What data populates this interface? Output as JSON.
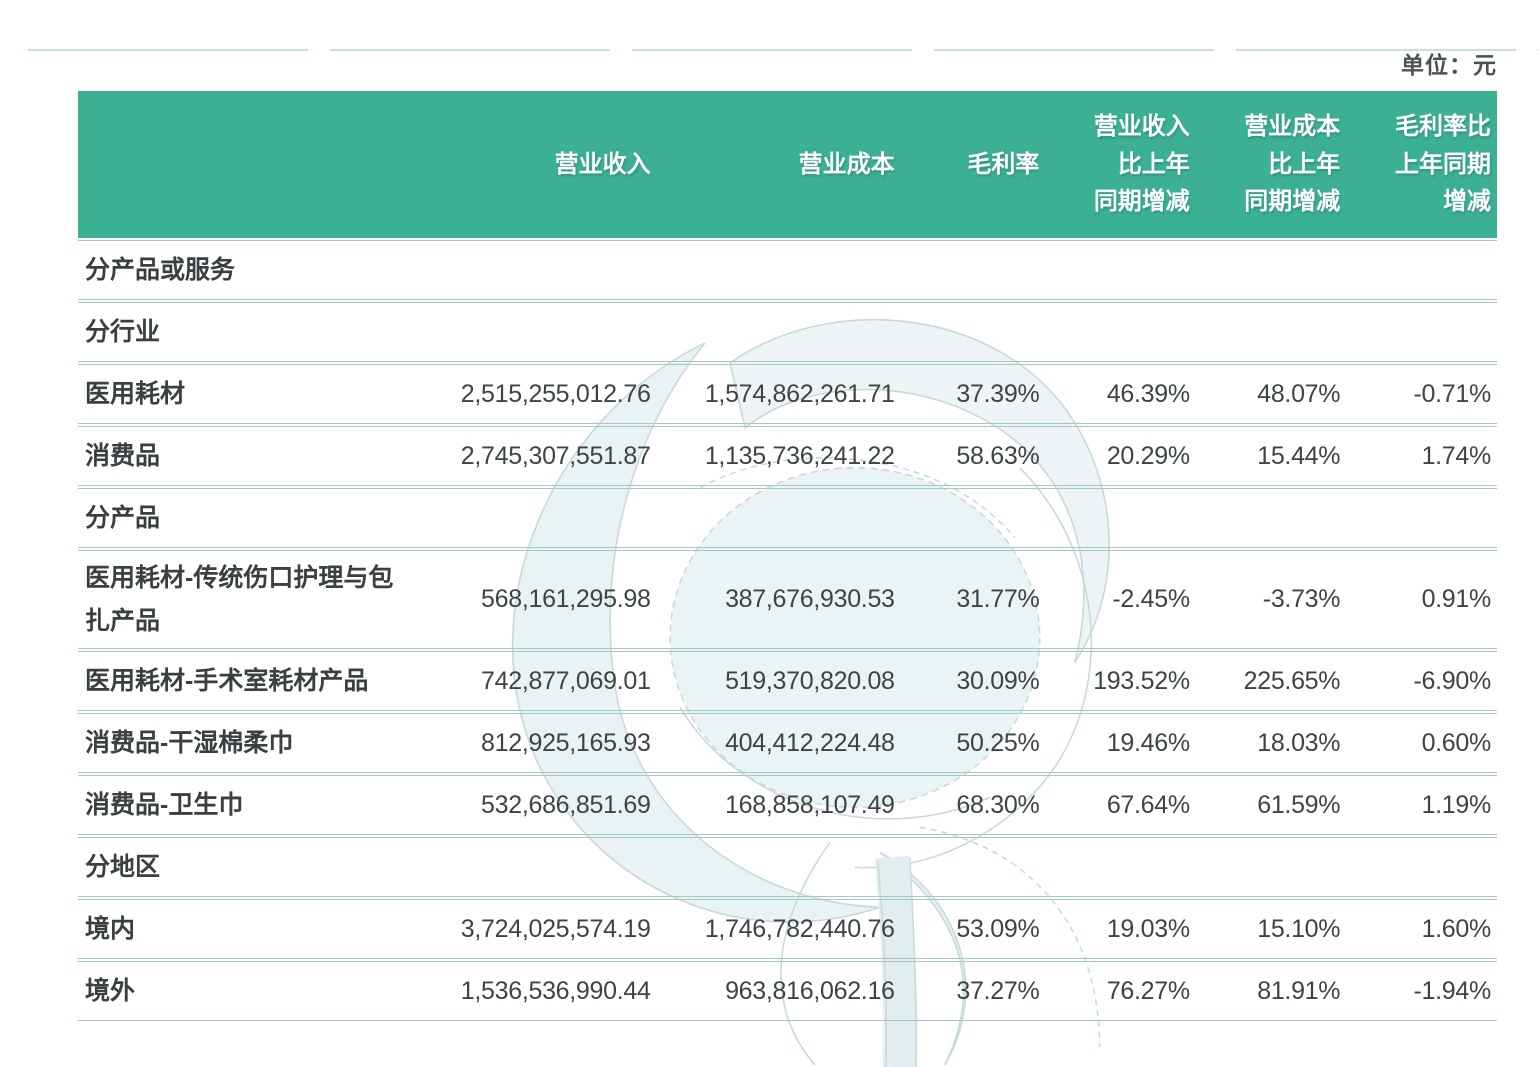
{
  "unit_label": "单位：元",
  "colors": {
    "header_bg": "#3bb093",
    "header_text": "#ffffff",
    "row_line": "#a3cabf",
    "body_text": "#3d4446",
    "watermark_line": "#c6dadc",
    "watermark_fill": "#e9f2f4"
  },
  "watermark_icon": "cotton-flower-watermark",
  "table": {
    "columns": [
      "",
      "营业收入",
      "营业成本",
      "毛利率",
      "营业收入\n比上年\n同期增减",
      "营业成本\n比上年\n同期增减",
      "毛利率比\n上年同期\n增减"
    ],
    "rows": [
      {
        "label": "分产品或服务",
        "section": true,
        "values": [
          "",
          "",
          "",
          "",
          "",
          ""
        ]
      },
      {
        "label": "分行业",
        "section": true,
        "values": [
          "",
          "",
          "",
          "",
          "",
          ""
        ]
      },
      {
        "label": "医用耗材",
        "section": false,
        "values": [
          "2,515,255,012.76",
          "1,574,862,261.71",
          "37.39%",
          "46.39%",
          "48.07%",
          "-0.71%"
        ]
      },
      {
        "label": "消费品",
        "section": false,
        "values": [
          "2,745,307,551.87",
          "1,135,736,241.22",
          "58.63%",
          "20.29%",
          "15.44%",
          "1.74%"
        ]
      },
      {
        "label": "分产品",
        "section": true,
        "values": [
          "",
          "",
          "",
          "",
          "",
          ""
        ]
      },
      {
        "label": "医用耗材-传统伤口护理与包扎产品",
        "section": false,
        "values": [
          "568,161,295.98",
          "387,676,930.53",
          "31.77%",
          "-2.45%",
          "-3.73%",
          "0.91%"
        ]
      },
      {
        "label": "医用耗材-手术室耗材产品",
        "section": false,
        "values": [
          "742,877,069.01",
          "519,370,820.08",
          "30.09%",
          "193.52%",
          "225.65%",
          "-6.90%"
        ]
      },
      {
        "label": "消费品-干湿棉柔巾",
        "section": false,
        "values": [
          "812,925,165.93",
          "404,412,224.48",
          "50.25%",
          "19.46%",
          "18.03%",
          "0.60%"
        ]
      },
      {
        "label": "消费品-卫生巾",
        "section": false,
        "values": [
          "532,686,851.69",
          "168,858,107.49",
          "68.30%",
          "67.64%",
          "61.59%",
          "1.19%"
        ]
      },
      {
        "label": "分地区",
        "section": true,
        "values": [
          "",
          "",
          "",
          "",
          "",
          ""
        ]
      },
      {
        "label": "境内",
        "section": false,
        "values": [
          "3,724,025,574.19",
          "1,746,782,440.76",
          "53.09%",
          "19.03%",
          "15.10%",
          "1.60%"
        ]
      },
      {
        "label": "境外",
        "section": false,
        "values": [
          "1,536,536,990.44",
          "963,816,062.16",
          "37.27%",
          "76.27%",
          "81.91%",
          "-1.94%"
        ]
      }
    ]
  }
}
